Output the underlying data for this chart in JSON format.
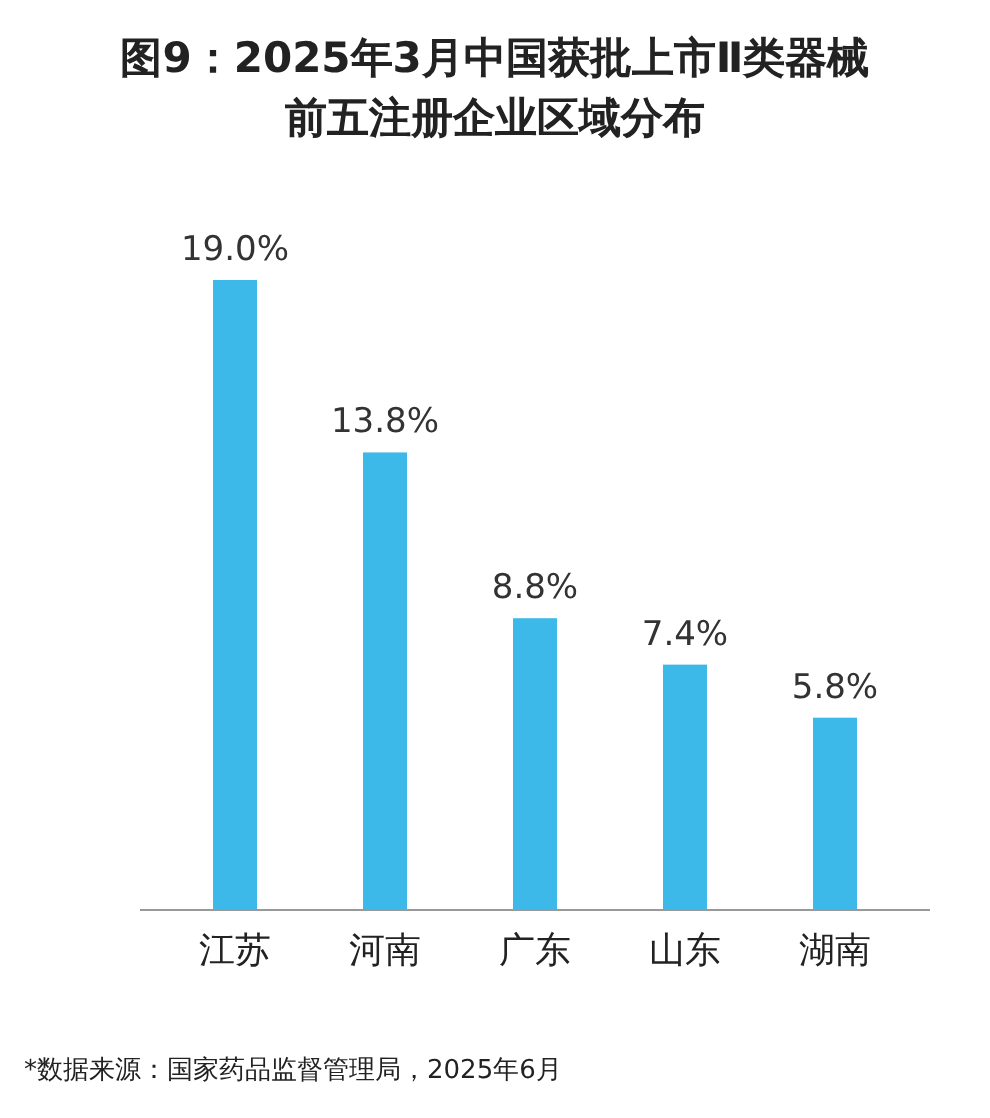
{
  "chart_data": {
    "type": "bar",
    "title": "图9：2025年3月中国获批上市Ⅱ类器械前五注册企业区域分布",
    "categories": [
      "江苏",
      "河南",
      "广东",
      "山东",
      "湖南"
    ],
    "values": [
      19.0,
      13.8,
      8.8,
      7.4,
      5.8
    ],
    "value_labels": [
      "19.0%",
      "13.8%",
      "8.8%",
      "7.4%",
      "5.8%"
    ],
    "color": "#3db9e9",
    "annotations": [
      "*数据来源：国家药品监督管理局，2025年6月"
    ]
  }
}
